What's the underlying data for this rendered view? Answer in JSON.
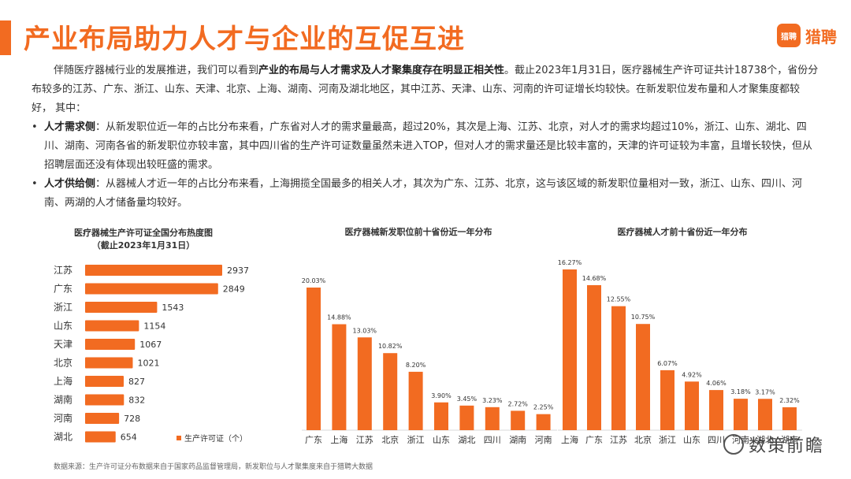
{
  "page": {
    "title": "产业布局助力人才与企业的互促互进",
    "logo_text": "猎聘",
    "logo_badge": "猎聘",
    "intro_1": "伴随医疗器械行业的发展推进，我们可以看到",
    "intro_bold": "产业的布局与人才需求及人才聚集度存在明显正相关性",
    "intro_2": "。截止2023年1月31日，医疗器械生产许可证共计18738个，省份分布较多的江苏、广东、浙江、山东、天津、北京、上海、湖南、河南及湖北地区，其中江苏、天津、山东、河南的许可证增长均较快。在新发职位发布量和人才聚集度都较好， 其中：",
    "bullet_mark": "•",
    "bullet1_label": "人才需求侧",
    "bullet1_text": "：从新发职位近一年的占比分布来看，广东省对人才的需求量最高，超过20%，其次是上海、江苏、北京，对人才的需求均超过10%，浙江、山东、湖北、四川、湖南、河南各省的新发职位亦较丰富，其中四川省的生产许可证数量虽然未进入TOP，但对人才的需求量还是比较丰富的，天津的许可证较为丰富，且增长较快，但从招聘层面还没有体现出较旺盛的需求。",
    "bullet2_label": "人才供给侧",
    "bullet2_text": "：从器械人才近一年的占比分布来看，上海拥揽全国最多的相关人才，其次为广东、江苏、北京，这与该区域的新发职位量相对一致，浙江、山东、四川、河南、两湖的人才储备量均较好。",
    "source": "数据来源：生产许可证分布数据来自于国家药品监督管理局，新发职位与人才聚集度来自于猎聘大数据",
    "watermark": "数策前瞻"
  },
  "colors": {
    "accent": "#f26b21",
    "bar": "#f26b21",
    "bar_light": "#f8a37a"
  },
  "chart_data": [
    {
      "type": "bar",
      "orientation": "horizontal",
      "title": "医疗器械生产许可证全国分布热度图",
      "subtitle": "（截止2023年1月31日）",
      "categories": [
        "江苏",
        "广东",
        "浙江",
        "山东",
        "天津",
        "北京",
        "上海",
        "湖南",
        "河南",
        "湖北"
      ],
      "values": [
        2937,
        2849,
        1543,
        1154,
        1067,
        1021,
        827,
        832,
        728,
        654
      ],
      "legend": "生产许可证（个）"
    },
    {
      "type": "bar",
      "title": "医疗器械新发职位前十省份近一年分布",
      "categories": [
        "广东",
        "上海",
        "江苏",
        "北京",
        "浙江",
        "山东",
        "湖北",
        "四川",
        "湖南",
        "河南"
      ],
      "values": [
        20.03,
        14.88,
        13.03,
        10.82,
        8.2,
        3.9,
        3.45,
        3.23,
        2.72,
        2.25
      ],
      "labels": [
        "20.03%",
        "14.88%",
        "13.03%",
        "10.82%",
        "8.20%",
        "3.90%",
        "3.45%",
        "3.23%",
        "2.72%",
        "2.25%"
      ]
    },
    {
      "type": "bar",
      "title": "医疗器械人才前十省份近一年分布",
      "categories": [
        "上海",
        "广东",
        "江苏",
        "北京",
        "浙江",
        "山东",
        "四川",
        "河南",
        "湖北",
        "湖南"
      ],
      "values": [
        16.27,
        14.68,
        12.55,
        10.75,
        6.07,
        4.92,
        4.06,
        3.18,
        3.17,
        2.32
      ],
      "labels": [
        "16.27%",
        "14.68%",
        "12.55%",
        "10.75%",
        "6.07%",
        "4.92%",
        "4.06%",
        "3.18%",
        "3.17%",
        "2.32%"
      ]
    }
  ]
}
